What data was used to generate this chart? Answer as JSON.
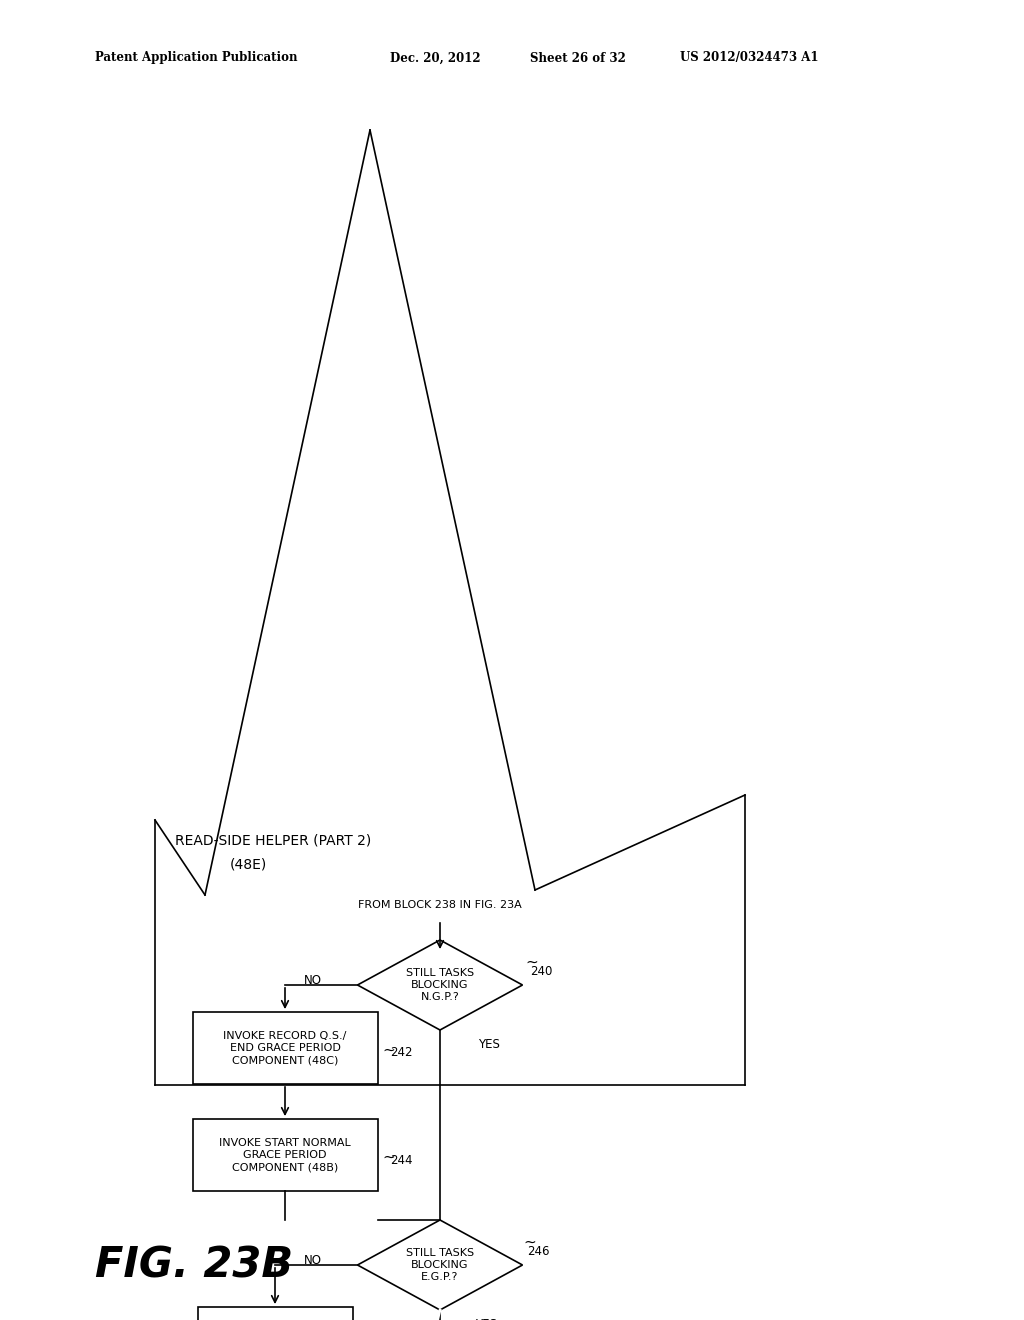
{
  "bg_color": "#ffffff",
  "header_text1": "Patent Application Publication",
  "header_text2": "Dec. 20, 2012",
  "header_text3": "Sheet 26 of 32",
  "header_text4": "US 2012/0324473 A1",
  "figure_label": "FIG. 23B",
  "title_line1": "READ-SIDE HELPER (PART 2)",
  "title_line2": "(48E)",
  "from_block_text": "FROM BLOCK 238 IN FIG. 23A"
}
